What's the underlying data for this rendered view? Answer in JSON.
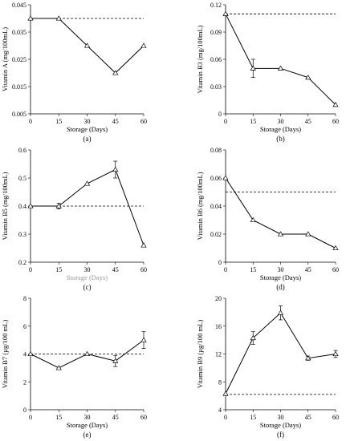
{
  "chart_data": [
    {
      "type": "line",
      "panel_label": "(a)",
      "xlabel": "Storage (Days)",
      "ylabel": "Vitamin A (mg/100mL)",
      "x": [
        0,
        15,
        30,
        45,
        60
      ],
      "values": [
        0.04,
        0.04,
        0.03,
        0.02,
        0.03
      ],
      "errors": [
        0,
        0,
        0,
        0,
        0
      ],
      "reference": 0.04,
      "xlim": [
        0,
        60
      ],
      "ylim": [
        0.005,
        0.045
      ],
      "xticks": [
        "0",
        "15",
        "30",
        "45",
        "60"
      ],
      "yticks": [
        "0.005",
        "0.015",
        "0.025",
        "0.035",
        "0.045"
      ],
      "xlabel_color": "#000000"
    },
    {
      "type": "line",
      "panel_label": "(b)",
      "xlabel": "Storage (Days)",
      "ylabel": "Vitamin B3 (mg/100mL)",
      "x": [
        0,
        15,
        30,
        45,
        60
      ],
      "values": [
        0.11,
        0.05,
        0.05,
        0.04,
        0.01
      ],
      "errors": [
        0,
        0.01,
        0,
        0,
        0
      ],
      "reference": 0.11,
      "xlim": [
        0,
        60
      ],
      "ylim": [
        0,
        0.12
      ],
      "xticks": [
        "0",
        "15",
        "30",
        "45",
        "60"
      ],
      "yticks": [
        "0",
        "0.03",
        "0.06",
        "0.09",
        "0.12"
      ],
      "xlabel_color": "#000000"
    },
    {
      "type": "line",
      "panel_label": "(c)",
      "xlabel": "Storage (Days)",
      "ylabel": "Vitamin B5 (mg/100mL)",
      "x": [
        0,
        15,
        30,
        45,
        60
      ],
      "values": [
        0.4,
        0.4,
        0.48,
        0.53,
        0.26
      ],
      "errors": [
        0,
        0.01,
        0,
        0.03,
        0
      ],
      "reference": 0.4,
      "xlim": [
        0,
        60
      ],
      "ylim": [
        0.2,
        0.6
      ],
      "xticks": [
        "0",
        "15",
        "30",
        "45",
        "60"
      ],
      "yticks": [
        "0.2",
        "0.3",
        "0.4",
        "0.5",
        "0.6"
      ],
      "xlabel_color": "#9a9a9a"
    },
    {
      "type": "line",
      "panel_label": "(d)",
      "xlabel": "Storage (Days)",
      "ylabel": "Vitamin B6 (mg/100mL)",
      "x": [
        0,
        15,
        30,
        45,
        60
      ],
      "values": [
        0.06,
        0.03,
        0.02,
        0.02,
        0.01
      ],
      "errors": [
        0,
        0,
        0,
        0,
        0
      ],
      "reference": 0.05,
      "xlim": [
        0,
        60
      ],
      "ylim": [
        0,
        0.08
      ],
      "xticks": [
        "0",
        "15",
        "30",
        "45",
        "60"
      ],
      "yticks": [
        "0",
        "0.02",
        "0.04",
        "0.06",
        "0.08"
      ],
      "xlabel_color": "#000000"
    },
    {
      "type": "line",
      "panel_label": "(e)",
      "xlabel": "Storage (Days)",
      "ylabel": "Vitamin B7 (µg/100 mL)",
      "x": [
        0,
        15,
        30,
        45,
        60
      ],
      "values": [
        4,
        3,
        4,
        3.5,
        5
      ],
      "errors": [
        0,
        0,
        0,
        0.4,
        0.6
      ],
      "reference": 4,
      "xlim": [
        0,
        60
      ],
      "ylim": [
        0,
        8
      ],
      "xticks": [
        "0",
        "15",
        "30",
        "45",
        "60"
      ],
      "yticks": [
        "0",
        "2",
        "4",
        "6",
        "8"
      ],
      "xlabel_color": "#000000"
    },
    {
      "type": "line",
      "panel_label": "(f)",
      "xlabel": "Storage (Days)",
      "ylabel": "Vitamin B9 (µg/100 mL)",
      "x": [
        0,
        15,
        30,
        45,
        60
      ],
      "values": [
        6.3,
        14.3,
        17.9,
        11.4,
        12
      ],
      "errors": [
        0,
        0.9,
        1,
        0.3,
        0.5
      ],
      "reference": 6.2,
      "xlim": [
        0,
        60
      ],
      "ylim": [
        4,
        20
      ],
      "xticks": [
        "0",
        "15",
        "30",
        "45",
        "60"
      ],
      "yticks": [
        "4",
        "8",
        "12",
        "16",
        "20"
      ],
      "xlabel_color": "#000000"
    }
  ]
}
